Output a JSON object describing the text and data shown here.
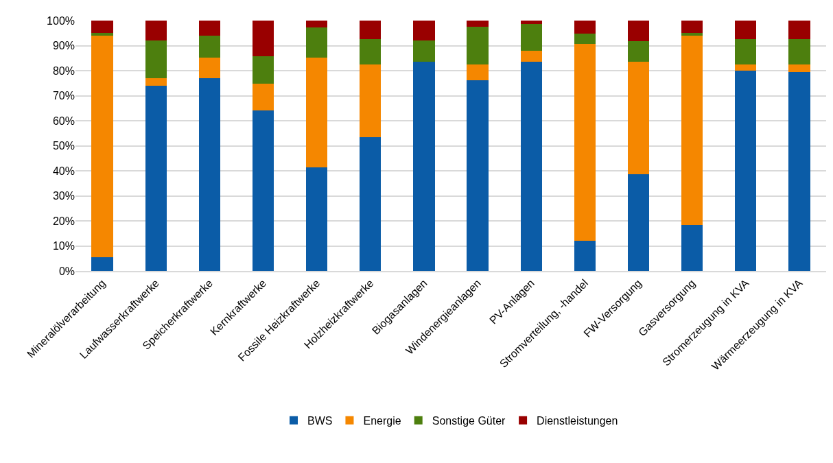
{
  "chart_data": {
    "type": "bar",
    "stacked": true,
    "categories": [
      "Mineralölverarbeitung",
      "Laufwasserkraftwerke",
      "Speicherkraftwerke",
      "Kernkraftwerke",
      "Fossile Heizkraftwerke",
      "Holzheizkraftwerke",
      "Biogasanlagen",
      "Windenergieanlagen",
      "PV-Anlagen",
      "Stromverteilung, -handel",
      "FW-Versorgung",
      "Gasversorgung",
      "Stromerzeugung in KVA",
      "Wärmeerzeugung in KVA"
    ],
    "series": [
      {
        "name": "BWS",
        "color": "#0b5ca7",
        "values": [
          5.5,
          74,
          77,
          64,
          41.3,
          53.5,
          83.5,
          76.2,
          83.5,
          12,
          38.5,
          18.3,
          80,
          79.5
        ]
      },
      {
        "name": "Energie",
        "color": "#f58700",
        "values": [
          88.5,
          3,
          8.3,
          10.7,
          44,
          29,
          0,
          6.2,
          4.5,
          78.8,
          45.1,
          75.8,
          2.5,
          3
        ]
      },
      {
        "name": "Sonstige Güter",
        "color": "#4d7f0e",
        "values": [
          1.2,
          15,
          8.7,
          11.1,
          12,
          10,
          8.5,
          15,
          10.5,
          3.9,
          8.2,
          1.1,
          10,
          10
        ]
      },
      {
        "name": "Dienstleistungen",
        "color": "#990000",
        "values": [
          4.8,
          8,
          6,
          14.2,
          2.7,
          7.5,
          8,
          2.6,
          1.5,
          5.3,
          8.2,
          4.8,
          7.5,
          7.5
        ]
      }
    ],
    "ylim": [
      0,
      100
    ],
    "yticks": [
      {
        "value": 0,
        "label": "0%"
      },
      {
        "value": 10,
        "label": "10%"
      },
      {
        "value": 20,
        "label": "20%"
      },
      {
        "value": 30,
        "label": "30%"
      },
      {
        "value": 40,
        "label": "40%"
      },
      {
        "value": 50,
        "label": "50%"
      },
      {
        "value": 60,
        "label": "60%"
      },
      {
        "value": 70,
        "label": "70%"
      },
      {
        "value": 80,
        "label": "80%"
      },
      {
        "value": 90,
        "label": "90%"
      },
      {
        "value": 100,
        "label": "100%"
      }
    ],
    "grid": "y",
    "legend": "bottom"
  }
}
